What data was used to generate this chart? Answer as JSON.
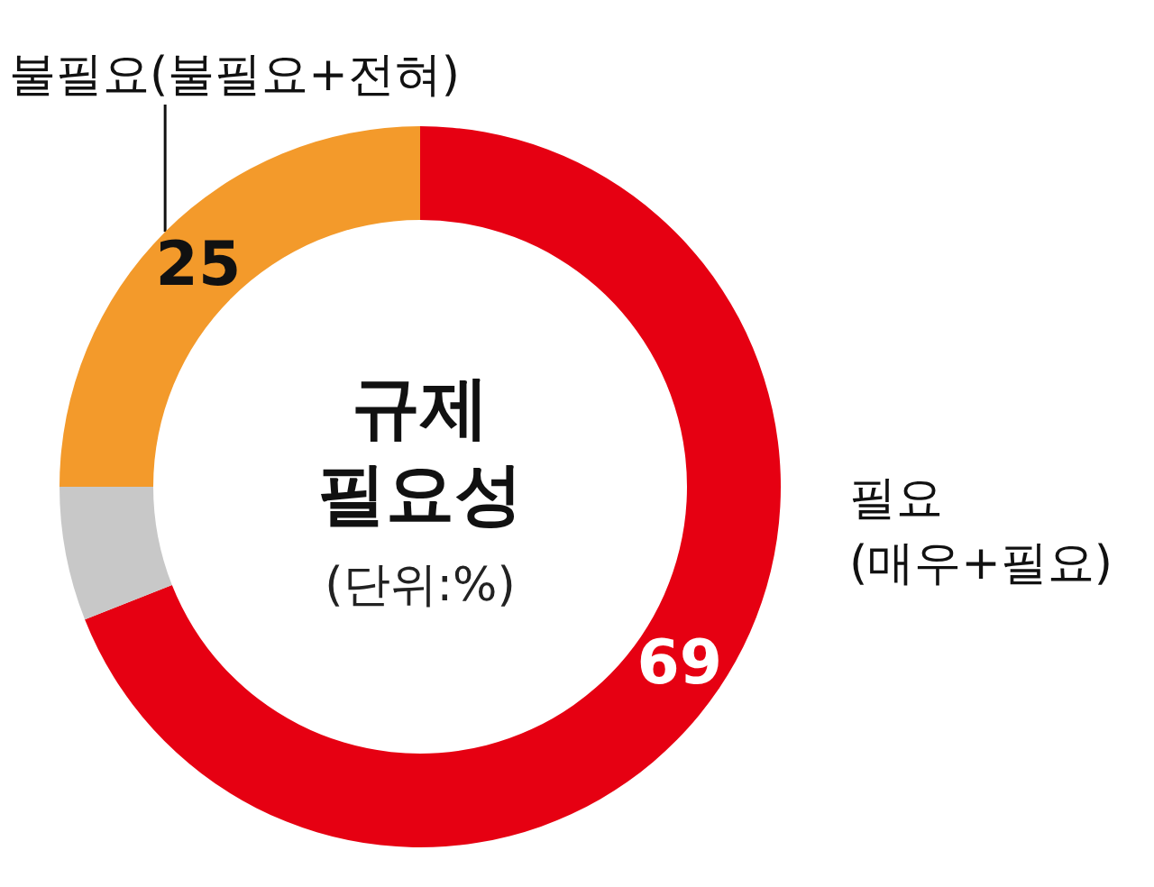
{
  "chart_data": {
    "type": "donut",
    "title": "규제\n필요성",
    "subtitle": "(단위:%)",
    "categories": [
      "필요\n(매우+필요)",
      null,
      "불필요(불필요+전혀)"
    ],
    "values": [
      69,
      6,
      25
    ],
    "colors": [
      "#e60012",
      "#c8c8c8",
      "#f39a2b"
    ],
    "value_labels": [
      "69",
      null,
      "25"
    ],
    "legend": false
  }
}
